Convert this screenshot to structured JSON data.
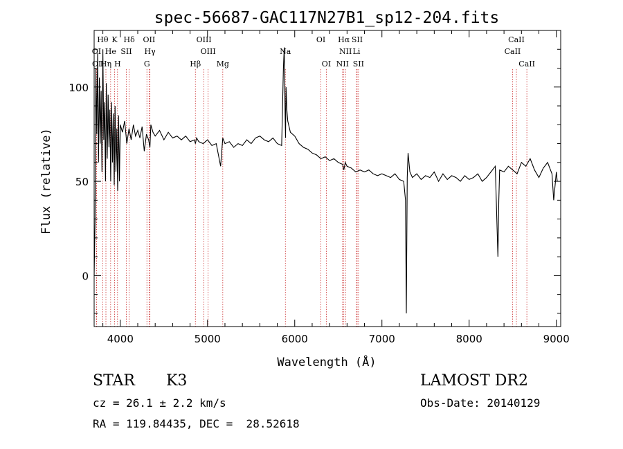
{
  "chart_data": {
    "type": "line",
    "title": "spec-56687-GAC117N27B1_sp12-204.fits",
    "xlabel": "Wavelength (Å)",
    "ylabel": "Flux (relative)",
    "xlim": [
      3700,
      9050
    ],
    "ylim": [
      -27,
      130
    ],
    "x_ticks": [
      4000,
      5000,
      6000,
      7000,
      8000,
      9000
    ],
    "y_ticks": [
      0,
      50,
      100
    ],
    "grid": false,
    "series_color": "#000000",
    "line_marker_color": "#cc3333",
    "spectrum": {
      "x": [
        3700,
        3710,
        3720,
        3730,
        3740,
        3750,
        3760,
        3770,
        3780,
        3790,
        3800,
        3810,
        3820,
        3830,
        3840,
        3850,
        3860,
        3870,
        3880,
        3890,
        3900,
        3910,
        3920,
        3930,
        3940,
        3950,
        3960,
        3970,
        3980,
        3990,
        4000,
        4025,
        4050,
        4075,
        4100,
        4125,
        4150,
        4175,
        4200,
        4225,
        4250,
        4275,
        4300,
        4325,
        4340,
        4350,
        4375,
        4400,
        4450,
        4500,
        4550,
        4600,
        4650,
        4700,
        4750,
        4800,
        4850,
        4861,
        4875,
        4900,
        4950,
        5000,
        5050,
        5100,
        5150,
        5175,
        5200,
        5250,
        5300,
        5350,
        5400,
        5450,
        5500,
        5550,
        5600,
        5650,
        5700,
        5750,
        5800,
        5850,
        5870,
        5880,
        5890,
        5895,
        5900,
        5910,
        5920,
        5950,
        6000,
        6050,
        6100,
        6150,
        6200,
        6250,
        6300,
        6350,
        6400,
        6450,
        6500,
        6550,
        6563,
        6580,
        6600,
        6650,
        6700,
        6750,
        6800,
        6850,
        6900,
        6950,
        7000,
        7050,
        7100,
        7150,
        7200,
        7250,
        7270,
        7280,
        7290,
        7300,
        7320,
        7350,
        7400,
        7450,
        7500,
        7550,
        7600,
        7650,
        7700,
        7750,
        7800,
        7850,
        7900,
        7950,
        8000,
        8050,
        8100,
        8150,
        8200,
        8250,
        8300,
        8330,
        8340,
        8350,
        8400,
        8450,
        8500,
        8550,
        8600,
        8650,
        8700,
        8750,
        8800,
        8850,
        8900,
        8950,
        8970,
        9000,
        9010
      ],
      "y": [
        0,
        28,
        110,
        75,
        118,
        60,
        105,
        70,
        98,
        55,
        120,
        72,
        92,
        50,
        102,
        62,
        96,
        68,
        88,
        50,
        92,
        60,
        86,
        48,
        90,
        55,
        78,
        45,
        85,
        50,
        80,
        76,
        82,
        70,
        78,
        72,
        80,
        74,
        77,
        73,
        79,
        66,
        75,
        72,
        68,
        80,
        76,
        74,
        77,
        72,
        76,
        73,
        74,
        72,
        74,
        71,
        72,
        70,
        73,
        71,
        70,
        72,
        69,
        70,
        58,
        73,
        70,
        71,
        68,
        70,
        69,
        72,
        70,
        73,
        74,
        72,
        71,
        73,
        70,
        69,
        110,
        121,
        85,
        73,
        100,
        88,
        82,
        76,
        74,
        70,
        68,
        67,
        65,
        64,
        62,
        63,
        61,
        62,
        60,
        59,
        56,
        60,
        58,
        57,
        55,
        56,
        55,
        56,
        54,
        53,
        54,
        53,
        52,
        54,
        51,
        50,
        40,
        -20,
        52,
        65,
        55,
        52,
        54,
        51,
        53,
        52,
        55,
        50,
        54,
        51,
        53,
        52,
        50,
        53,
        51,
        52,
        54,
        50,
        52,
        55,
        58,
        10,
        40,
        56,
        55,
        58,
        56,
        54,
        60,
        58,
        62,
        56,
        52,
        57,
        60,
        54,
        40,
        55,
        50
      ]
    },
    "line_markers": [
      {
        "label": "Hθ",
        "x": 3798,
        "row": 0
      },
      {
        "label": "K",
        "x": 3934,
        "row": 0
      },
      {
        "label": "Hδ",
        "x": 4102,
        "row": 0
      },
      {
        "label": "OII",
        "x": 4330,
        "row": 0
      },
      {
        "label": "OIII",
        "x": 4959,
        "row": 0
      },
      {
        "label": "OI",
        "x": 6300,
        "row": 0
      },
      {
        "label": "Hα",
        "x": 6563,
        "row": 0
      },
      {
        "label": "SII",
        "x": 6716,
        "row": 0
      },
      {
        "label": "CaII",
        "x": 8542,
        "row": 0
      },
      {
        "label": "OI",
        "x": 3727,
        "row": 1
      },
      {
        "label": "He",
        "x": 3889,
        "row": 1
      },
      {
        "label": "SII",
        "x": 4069,
        "row": 1
      },
      {
        "label": "Hγ",
        "x": 4340,
        "row": 1
      },
      {
        "label": "OIII",
        "x": 5007,
        "row": 1
      },
      {
        "label": "Na",
        "x": 5893,
        "row": 1
      },
      {
        "label": "NII",
        "x": 6583,
        "row": 1
      },
      {
        "label": "Li",
        "x": 6708,
        "row": 1
      },
      {
        "label": "CaII",
        "x": 8498,
        "row": 1
      },
      {
        "label": "OI",
        "x": 3729,
        "row": 2
      },
      {
        "label": "Hη",
        "x": 3835,
        "row": 2
      },
      {
        "label": "H",
        "x": 3968,
        "row": 2
      },
      {
        "label": "G",
        "x": 4305,
        "row": 2
      },
      {
        "label": "Hβ",
        "x": 4861,
        "row": 2
      },
      {
        "label": "Mg",
        "x": 5175,
        "row": 2
      },
      {
        "label": "OI",
        "x": 6363,
        "row": 2
      },
      {
        "label": "NII",
        "x": 6548,
        "row": 2
      },
      {
        "label": "SII",
        "x": 6731,
        "row": 2
      },
      {
        "label": "CaII",
        "x": 8662,
        "row": 2
      }
    ]
  },
  "info": {
    "object_class": "STAR",
    "subclass": "K3",
    "survey": "LAMOST DR2",
    "cz": "cz = 26.1 ± 2.2 km/s",
    "obs_date": "Obs-Date: 20140129",
    "coords": "RA = 119.84435, DEC =  28.52618"
  }
}
